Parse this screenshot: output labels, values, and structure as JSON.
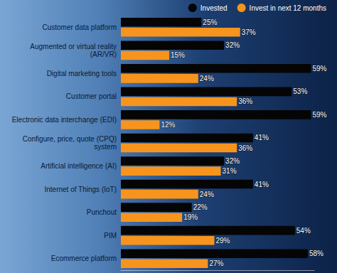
{
  "chart_data": {
    "type": "bar",
    "orientation": "horizontal",
    "categories": [
      "Customer data platform",
      "Augmented or virtual reality\n(AR/VR)",
      "Digital marketing tools",
      "Customer portal",
      "Electronic data interchange (EDI)",
      "Configure, price, quote (CPQ)\nsystem",
      "Artificial intelligence (AI)",
      "Internet of Things (IoT)",
      "Punchout",
      "PIM",
      "Ecommerce platform"
    ],
    "series": [
      {
        "name": "Invested",
        "color": "#050505",
        "values": [
          25,
          32,
          59,
          53,
          59,
          41,
          32,
          41,
          22,
          54,
          58
        ],
        "value_labels": [
          "25%",
          "32%",
          "59%",
          "53%",
          "59%",
          "41%",
          "32%",
          "41%",
          "22%",
          "54%",
          "58%"
        ]
      },
      {
        "name": "Invest in next 12 months",
        "color": "#f7941d",
        "values": [
          37,
          15,
          24,
          36,
          12,
          36,
          31,
          24,
          19,
          29,
          27
        ],
        "value_labels": [
          "37%",
          "15%",
          "24%",
          "36%",
          "12%",
          "36%",
          "31%",
          "24%",
          "19%",
          "29%",
          "27%"
        ]
      }
    ],
    "xlim": [
      0,
      60
    ],
    "grid": false,
    "legend": "top",
    "data_labels": true,
    "tick_labels": "y"
  }
}
